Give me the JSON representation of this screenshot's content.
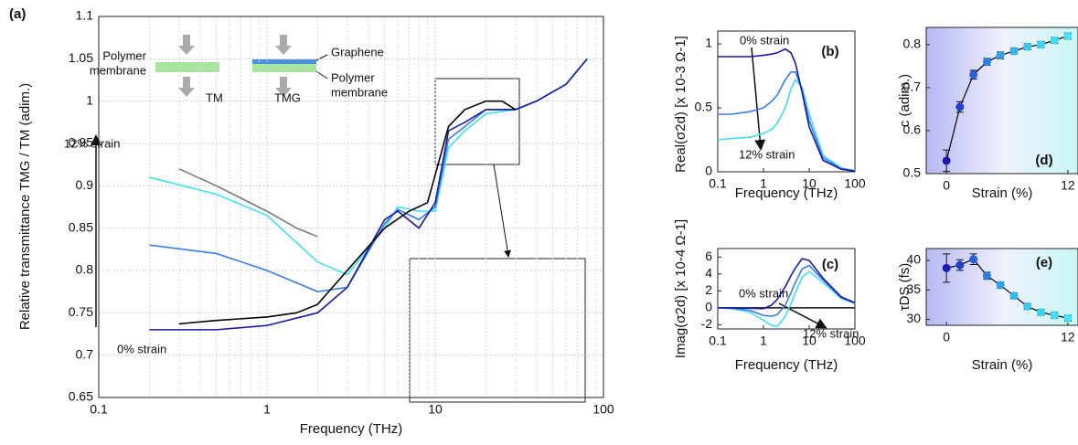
{
  "chart_data": [
    {
      "type": "line",
      "title": "(a)",
      "xlabel": "Frequency (THz)",
      "ylabel": "Relative transmittance  TMG / TM  (adim.)",
      "xscale": "log",
      "xlim": [
        0.1,
        100
      ],
      "ylim": [
        0.65,
        1.1
      ],
      "xticks": [
        0.1,
        1,
        10,
        100
      ],
      "yticks": [
        0.65,
        0.7,
        0.75,
        0.8,
        0.85,
        0.9,
        0.95,
        1,
        1.05,
        1.1
      ],
      "grid": true,
      "annotations": [
        "12% strain",
        "0% strain",
        "Polymer",
        "membrane",
        "Graphene",
        "Polymer",
        "membrane",
        "TM",
        "TMG"
      ],
      "series": [
        {
          "color": "#40e0f0",
          "x": [
            0.2,
            0.5,
            1,
            2,
            3,
            5,
            6,
            8,
            10,
            12,
            15,
            20,
            30,
            40,
            60,
            80
          ],
          "values": [
            0.91,
            0.89,
            0.865,
            0.81,
            0.795,
            0.85,
            0.875,
            0.87,
            0.87,
            0.945,
            0.965,
            0.985,
            0.99,
            1.0,
            1.02,
            1.05
          ]
        },
        {
          "color": "#3a7fe0",
          "x": [
            0.2,
            0.5,
            1,
            2,
            3,
            5,
            6,
            8,
            10,
            12,
            15,
            20,
            30,
            40,
            60,
            80
          ],
          "values": [
            0.83,
            0.82,
            0.8,
            0.775,
            0.78,
            0.855,
            0.872,
            0.86,
            0.875,
            0.955,
            0.97,
            0.99,
            0.99,
            1.0,
            1.02,
            1.05
          ]
        },
        {
          "color": "#1a1aa0",
          "x": [
            0.2,
            0.5,
            1,
            2,
            3,
            5,
            6,
            8,
            10,
            12,
            15,
            20,
            30,
            40,
            60,
            80
          ],
          "values": [
            0.73,
            0.73,
            0.735,
            0.75,
            0.78,
            0.86,
            0.87,
            0.85,
            0.88,
            0.965,
            0.975,
            0.99,
            0.99,
            1.0,
            1.02,
            1.05
          ]
        },
        {
          "color": "#7a7a7a",
          "x": [
            0.3,
            0.5,
            1,
            1.5,
            2
          ],
          "values": [
            0.92,
            0.9,
            0.87,
            0.85,
            0.84
          ]
        },
        {
          "color": "#000000",
          "x": [
            0.3,
            0.5,
            1,
            1.5,
            2,
            3,
            5,
            7,
            9,
            12,
            15,
            20,
            25,
            30
          ],
          "values": [
            0.737,
            0.741,
            0.745,
            0.75,
            0.76,
            0.8,
            0.85,
            0.87,
            0.88,
            0.97,
            0.99,
            1.0,
            1.0,
            0.99
          ]
        }
      ]
    },
    {
      "type": "line",
      "title": "(b)",
      "xlabel": "Frequency (THz)",
      "ylabel": "Real(σ2d)  [x 10-3 Ω-1]",
      "xscale": "log",
      "xlim": [
        0.1,
        100
      ],
      "ylim": [
        0,
        1.1
      ],
      "xticks": [
        0.1,
        1,
        10,
        100
      ],
      "yticks": [
        0,
        0.5,
        1
      ],
      "annotations": [
        "0% strain",
        "12% strain"
      ],
      "x": [
        0.1,
        0.2,
        0.5,
        1,
        1.5,
        2,
        3,
        4,
        5,
        7,
        10,
        20,
        50,
        100
      ],
      "series": [
        {
          "color": "#40e0f0",
          "values": [
            0.25,
            0.26,
            0.27,
            0.3,
            0.33,
            0.38,
            0.5,
            0.65,
            0.72,
            0.66,
            0.45,
            0.13,
            0.03,
            0.01
          ]
        },
        {
          "color": "#3a7fe0",
          "values": [
            0.45,
            0.45,
            0.47,
            0.5,
            0.55,
            0.6,
            0.72,
            0.78,
            0.78,
            0.64,
            0.4,
            0.11,
            0.025,
            0.007
          ]
        },
        {
          "color": "#1a1aa0",
          "values": [
            0.9,
            0.9,
            0.9,
            0.91,
            0.92,
            0.93,
            0.96,
            0.93,
            0.85,
            0.62,
            0.35,
            0.09,
            0.02,
            0.005
          ]
        }
      ]
    },
    {
      "type": "line",
      "title": "(c)",
      "xlabel": "Frequency (THz)",
      "ylabel": "Imag(σ2d)  [x 10-4 Ω-1]",
      "xscale": "log",
      "xlim": [
        0.1,
        100
      ],
      "ylim": [
        -2.5,
        7
      ],
      "xticks": [
        0.1,
        1,
        10,
        100
      ],
      "yticks": [
        -2,
        0,
        2,
        4,
        6
      ],
      "annotations": [
        "0% strain",
        "12% strain"
      ],
      "x": [
        0.1,
        0.2,
        0.5,
        1,
        1.5,
        2,
        3,
        4,
        5,
        7,
        10,
        20,
        50,
        100
      ],
      "series": [
        {
          "color": "#40e0f0",
          "values": [
            0,
            -0.1,
            -0.5,
            -1.5,
            -2.1,
            -2.2,
            -1,
            0.5,
            1.8,
            3.6,
            4.3,
            3,
            1.1,
            0.5
          ]
        },
        {
          "color": "#3a7fe0",
          "values": [
            0,
            -0.05,
            -0.3,
            -0.9,
            -1,
            -0.8,
            0.3,
            1.8,
            3,
            4.6,
            5,
            3.3,
            1.2,
            0.55
          ]
        },
        {
          "color": "#1a1aa0",
          "values": [
            0,
            -0.01,
            -0.05,
            -0.1,
            0.3,
            1,
            2.5,
            3.8,
            4.7,
            5.8,
            5.6,
            3.5,
            1.3,
            0.6
          ]
        }
      ]
    },
    {
      "type": "scatter",
      "title": "(d)",
      "xlabel": "Strain (%)",
      "ylabel": "c  (adim.)",
      "xlim": [
        -2,
        13
      ],
      "ylim": [
        0.5,
        0.84
      ],
      "xticks": [
        0,
        12
      ],
      "yticks": [
        0.5,
        0.6,
        0.7,
        0.8
      ],
      "series": [
        {
          "color": "#000000",
          "x": [
            0,
            1.33,
            2.67,
            4,
            5.33,
            6.67,
            8,
            9.33,
            10.67,
            12
          ],
          "values": [
            0.53,
            0.655,
            0.73,
            0.76,
            0.775,
            0.785,
            0.795,
            0.8,
            0.81,
            0.82
          ],
          "errors": [
            0.025,
            0.012,
            0.01,
            0.008,
            0.008,
            0.007,
            0.007,
            0.007,
            0.007,
            0.007
          ],
          "colors": [
            "#1a1ab0",
            "#2040c8",
            "#2a60d8",
            "#2c80e0",
            "#30a0e8",
            "#34b8ec",
            "#38c8f0",
            "#3cd4f2",
            "#40dcf4",
            "#44e4f6"
          ]
        }
      ]
    },
    {
      "type": "scatter",
      "title": "(e)",
      "xlabel": "Strain (%)",
      "ylabel": "τDS (fs)",
      "xlim": [
        -2,
        13
      ],
      "ylim": [
        29,
        42
      ],
      "xticks": [
        0,
        12
      ],
      "yticks": [
        30,
        35,
        40
      ],
      "series": [
        {
          "color": "#000000",
          "x": [
            0,
            1.33,
            2.67,
            4,
            5.33,
            6.67,
            8,
            9.33,
            10.67,
            12
          ],
          "values": [
            38.7,
            39.2,
            40.2,
            37.4,
            35.8,
            34,
            32.2,
            31.2,
            30.7,
            30.2
          ],
          "errors": [
            2.4,
            0.9,
            0.9,
            0.6,
            0.5,
            0.5,
            0.5,
            0.5,
            0.5,
            0.5
          ],
          "colors": [
            "#1a1ab0",
            "#2040c8",
            "#2a60d8",
            "#2c80e0",
            "#30a0e8",
            "#34b8ec",
            "#38c8f0",
            "#3cd4f2",
            "#40dcf4",
            "#44e4f6"
          ]
        }
      ]
    }
  ]
}
